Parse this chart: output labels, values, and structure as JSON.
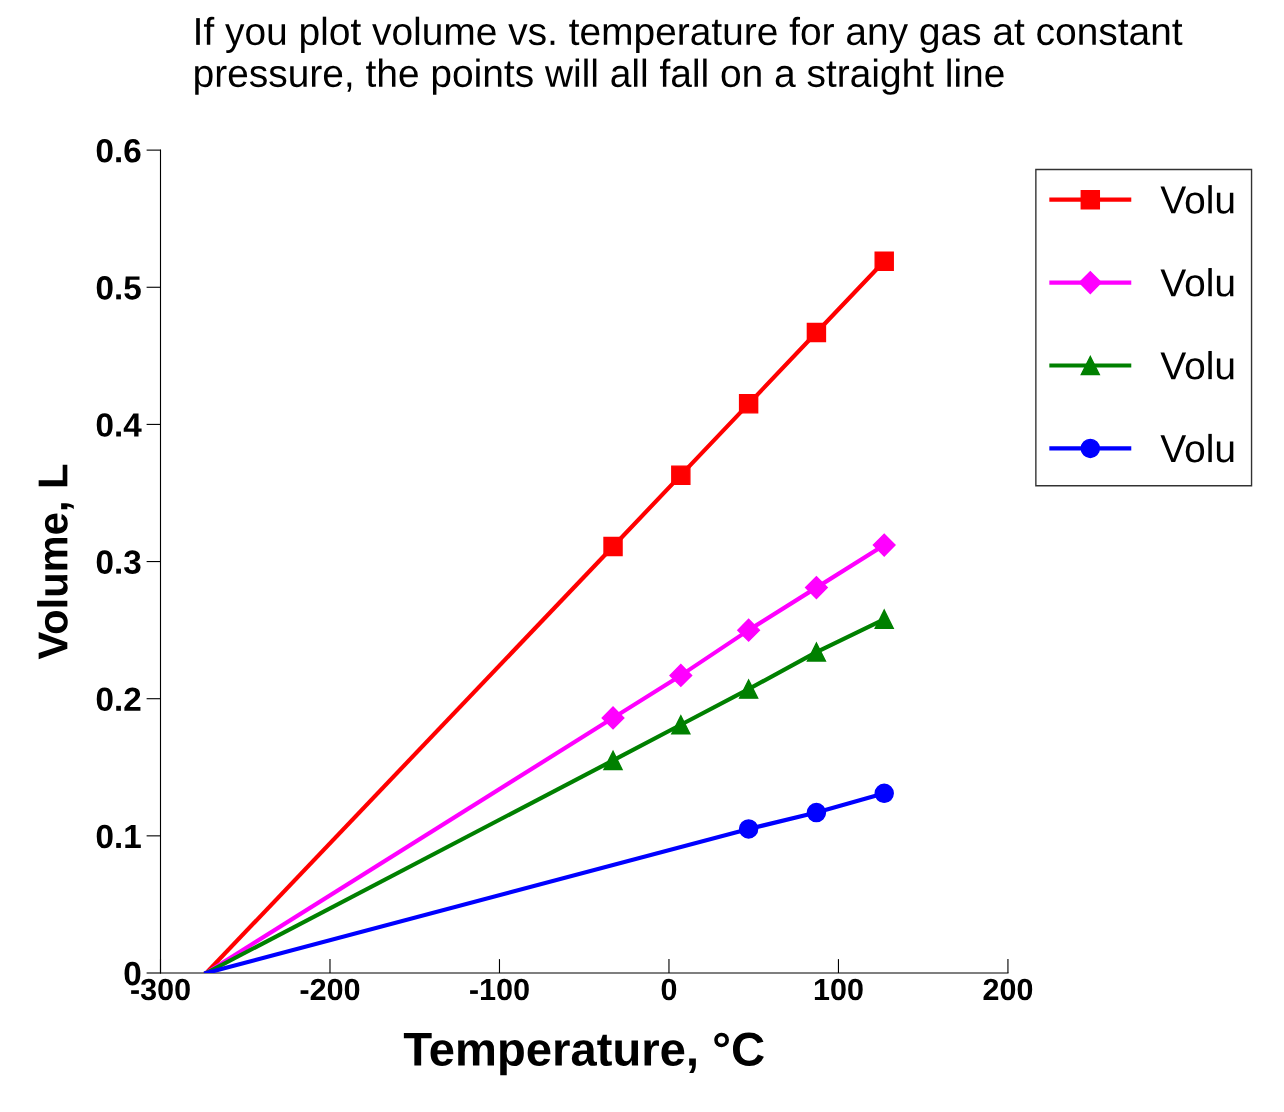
{
  "chart_data": {
    "type": "line",
    "title": "If you plot volume vs. temperature for any gas at constant pressure, the points will all fall on a straight line",
    "xlabel": "Temperature, °C",
    "ylabel": "Volume, L",
    "series": [
      {
        "name": "Volu",
        "color": "#ff0000",
        "marker": "square",
        "x": [
          -33,
          7,
          47,
          87,
          127
        ],
        "values": [
          0.311,
          0.363,
          0.415,
          0.467,
          0.519
        ]
      },
      {
        "name": "Volu",
        "color": "#ff00ff",
        "marker": "diamond",
        "x": [
          -33,
          7,
          47,
          87,
          127
        ],
        "values": [
          0.186,
          0.217,
          0.25,
          0.281,
          0.312
        ]
      },
      {
        "name": "Volu",
        "color": "#008000",
        "marker": "triangle",
        "x": [
          -33,
          7,
          47,
          87,
          127
        ],
        "values": [
          0.155,
          0.181,
          0.207,
          0.234,
          0.258
        ]
      },
      {
        "name": "Volu",
        "color": "#0000ff",
        "marker": "circle",
        "x": [
          47,
          87,
          127
        ],
        "values": [
          0.105,
          0.117,
          0.131
        ]
      },
      {
        "color": "#ff0000",
        "marker": "none",
        "x": [
          -273,
          -33
        ],
        "values": [
          0,
          0.311
        ]
      },
      {
        "color": "#ff00ff",
        "marker": "none",
        "x": [
          -273,
          -33
        ],
        "values": [
          0,
          0.186
        ]
      },
      {
        "color": "#008000",
        "marker": "none",
        "x": [
          -273,
          -33
        ],
        "values": [
          0,
          0.155
        ]
      },
      {
        "color": "#0000ff",
        "marker": "none",
        "x": [
          -273,
          47
        ],
        "values": [
          0,
          0.105
        ]
      }
    ],
    "xlim": [
      -300,
      200
    ],
    "xticks": [
      -300,
      -200,
      -100,
      0,
      100,
      200
    ],
    "ylim": [
      0,
      0.6
    ],
    "yticks": [
      0,
      0.1,
      0.2,
      0.3,
      0.4,
      0.5,
      0.6
    ],
    "grid": false,
    "legend": "top right",
    "line_style": "solid"
  }
}
